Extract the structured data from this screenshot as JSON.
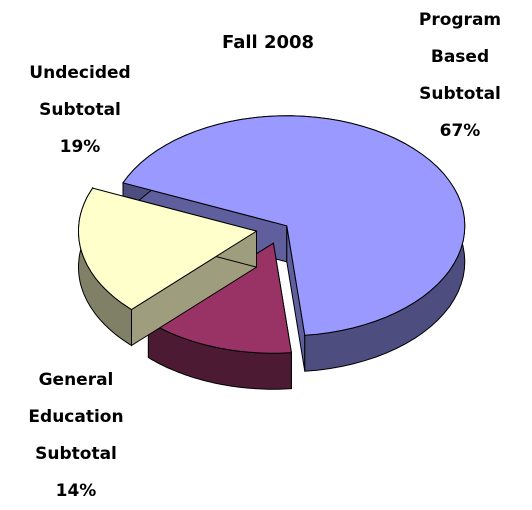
{
  "chart_data": {
    "type": "pie",
    "title": "Fall 2008",
    "categories": [
      "Program Based Subtotal",
      "General Education Subtotal",
      "Undecided Subtotal"
    ],
    "values": [
      67,
      14,
      19
    ],
    "value_labels": [
      "67%",
      "14%",
      "19%"
    ],
    "colors": [
      "#9999ff",
      "#993366",
      "#ffffcc"
    ]
  }
}
